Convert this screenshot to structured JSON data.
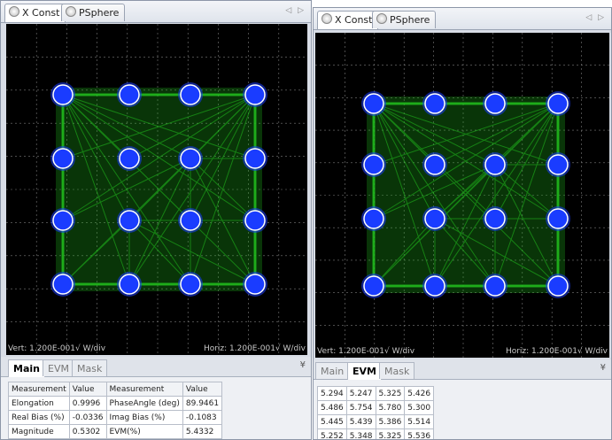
{
  "left": {
    "tabs": [
      {
        "label": "X Const",
        "active": true
      },
      {
        "label": "PSphere",
        "active": false
      }
    ],
    "axis": {
      "vert": "Vert: 1.200E-001√ W/div",
      "horiz": "Horiz: 1.200E-001√ W/div"
    },
    "bottom_tabs": [
      {
        "label": "Main",
        "active": true
      },
      {
        "label": "EVM",
        "active": false
      },
      {
        "label": "Mask",
        "active": false
      }
    ],
    "collapse": "¥",
    "table": {
      "headers": [
        "Measurement",
        "Value",
        "Measurement",
        "Value"
      ],
      "rows": [
        [
          "Elongation",
          "0.9996",
          "PhaseAngle (deg)",
          "89.9461"
        ],
        [
          "Real Bias (%)",
          "-0.0336",
          "Imag Bias (%)",
          "-0.1083"
        ],
        [
          "Magnitude",
          "0.5302",
          "EVM(%)",
          "5.4332"
        ]
      ]
    }
  },
  "right": {
    "tabs": [
      {
        "label": "X Const",
        "active": true
      },
      {
        "label": "PSphere",
        "active": false
      }
    ],
    "axis": {
      "vert": "Vert: 1.200E-001√ W/div",
      "horiz": "Horiz: 1.200E-001√ W/div"
    },
    "bottom_tabs": [
      {
        "label": "Main",
        "active": false
      },
      {
        "label": "EVM",
        "active": true
      },
      {
        "label": "Mask",
        "active": false
      }
    ],
    "collapse": "¥",
    "evm_grid": [
      [
        "5.294",
        "5.247",
        "5.325",
        "5.426"
      ],
      [
        "5.486",
        "5.754",
        "5.780",
        "5.300"
      ],
      [
        "5.445",
        "5.439",
        "5.386",
        "5.514"
      ],
      [
        "5.252",
        "5.348",
        "5.325",
        "5.536"
      ]
    ]
  },
  "colors": {
    "trace": "#22c01e",
    "symbol": "#1a3cff",
    "symbol_ring": "#ffffff",
    "grid": "#7a7a7a",
    "background": "#000000"
  }
}
